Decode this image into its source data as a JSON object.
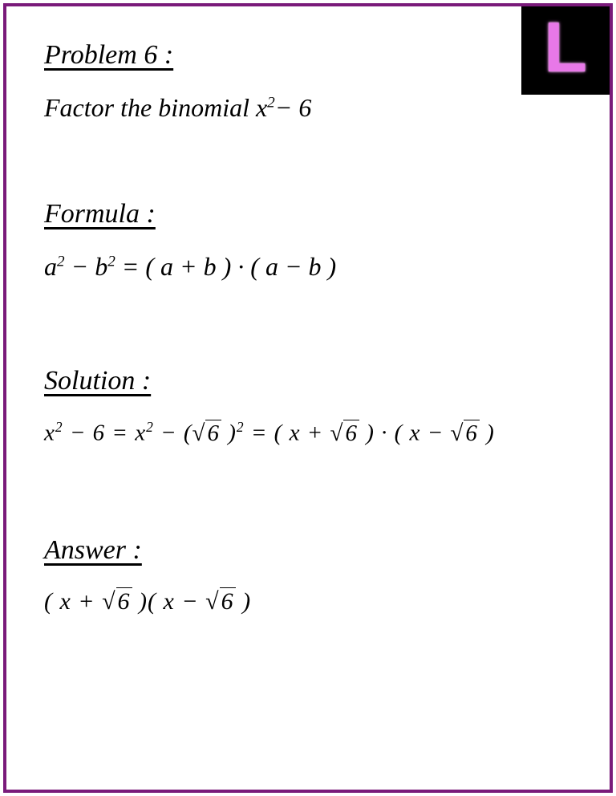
{
  "border_color": "#7a1a7a",
  "logo": {
    "background": "#000000",
    "letter": "L",
    "letter_color": "#e878e8"
  },
  "problem": {
    "heading": "Problem 6 :",
    "statement_prefix": "Factor the binomial ",
    "expression_base": "x",
    "expression_exp": "2",
    "expression_suffix": "− 6"
  },
  "formula": {
    "heading": "Formula :",
    "lhs_a": "a",
    "lhs_exp": "2",
    "lhs_minus": " − ",
    "lhs_b": "b",
    "eq": " = ",
    "rhs": "( a + b ) · ( a − b )"
  },
  "solution": {
    "heading": "Solution :",
    "step1_x": "x",
    "step1_exp": "2",
    "step1_minus6": " − 6  =  ",
    "step2_x": "x",
    "step2_exp": "2",
    "step2_minus": " − (",
    "step2_sqrt_arg": "6",
    "step2_close": " )",
    "step2_exp2": "2",
    "step2_eq": " = ",
    "factor1_open": "( x + ",
    "factor1_sqrt_arg": "6",
    "factor1_close": " ) · ",
    "factor2_open": "( x − ",
    "factor2_sqrt_arg": "6",
    "factor2_close": " )"
  },
  "answer": {
    "heading": "Answer :",
    "f1_open": "( x + ",
    "f1_sqrt": "6",
    "f1_close": " )",
    "f2_open": "( x − ",
    "f2_sqrt": "6",
    "f2_close": " )"
  }
}
